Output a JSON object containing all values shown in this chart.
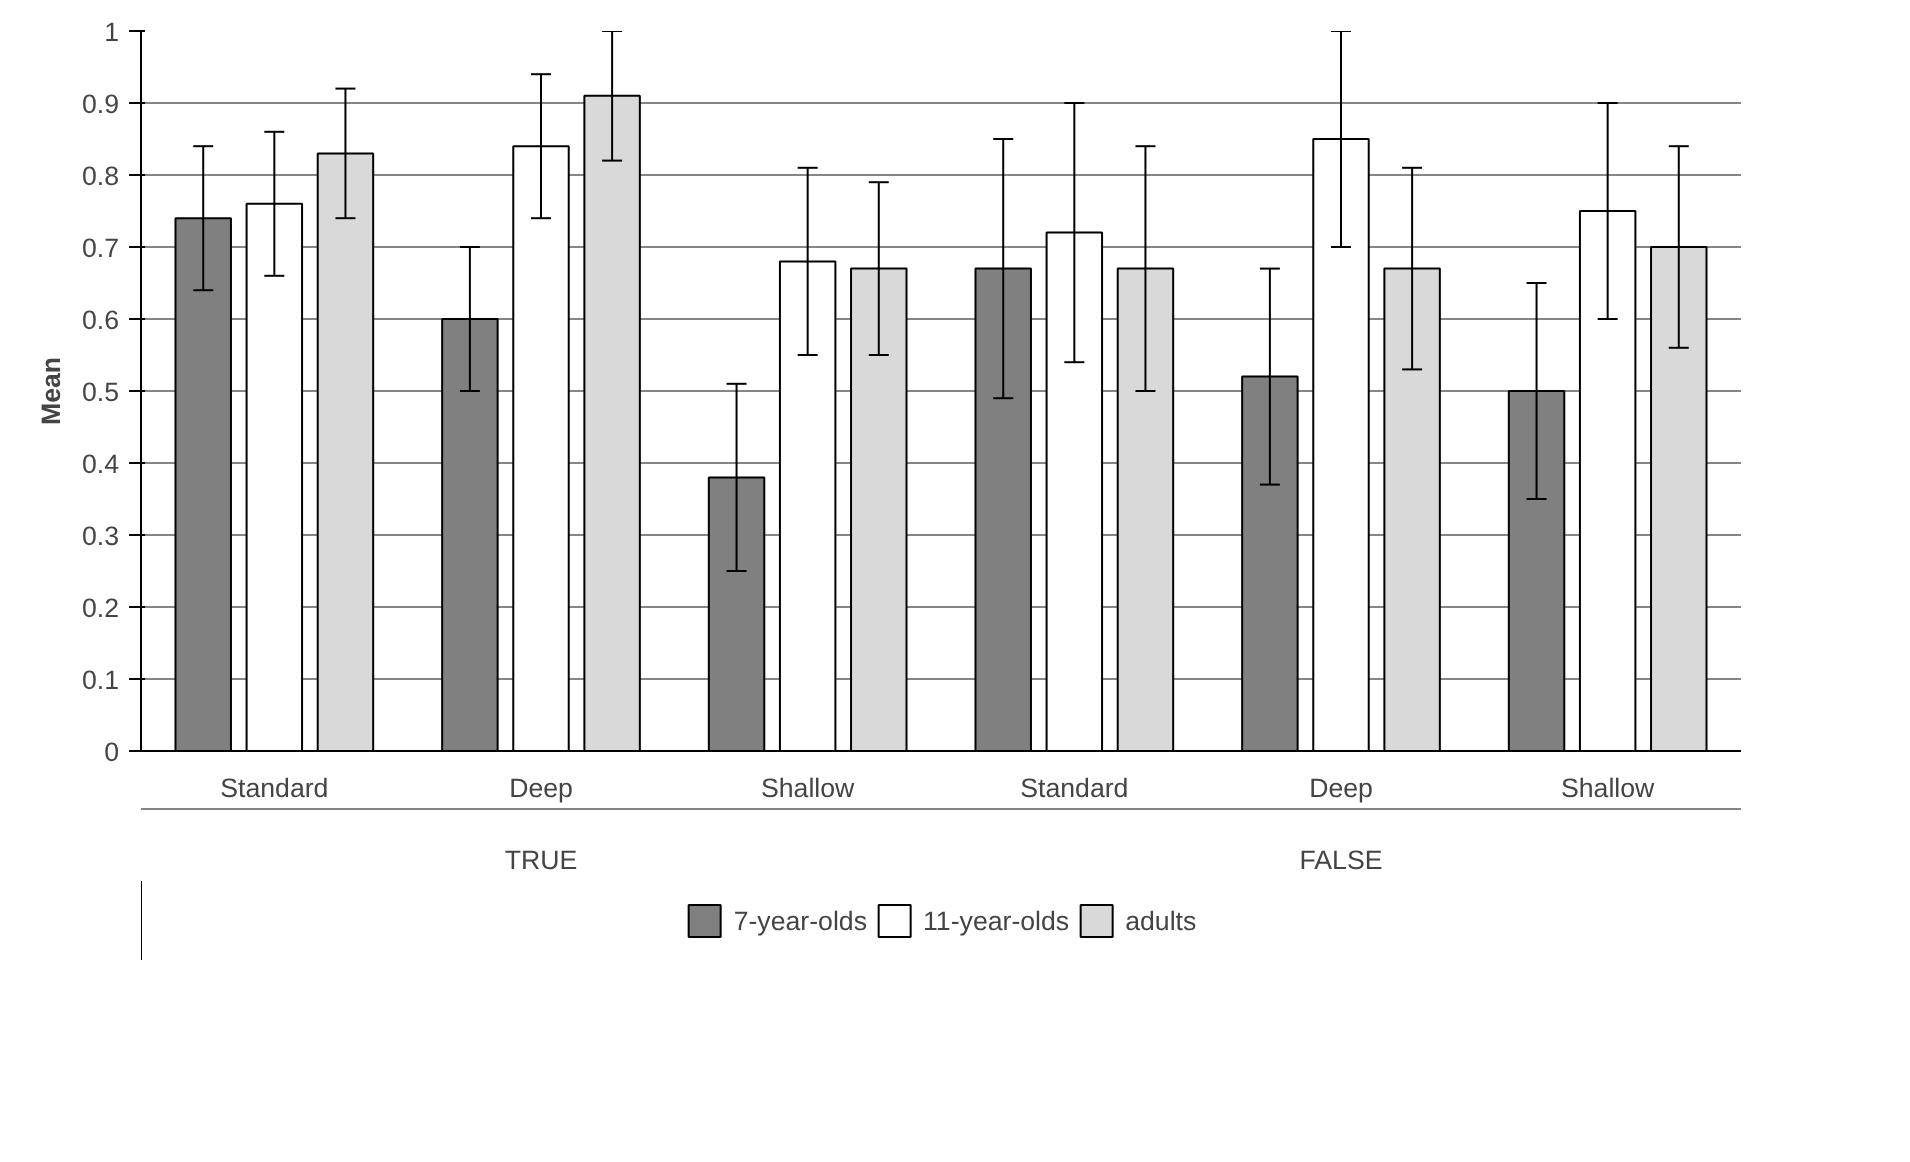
{
  "chart_data": {
    "type": "bar",
    "ylabel": "Mean",
    "categories": [
      "Standard",
      "Deep",
      "Shallow",
      "Standard",
      "Deep",
      "Shallow"
    ],
    "annotations": [
      "TRUE",
      "FALSE"
    ],
    "series": [
      {
        "name": "7-year-olds",
        "color": "#808080",
        "values": [
          0.74,
          0.6,
          0.38,
          0.67,
          0.52,
          0.5
        ],
        "errors": [
          0.1,
          0.1,
          0.13,
          0.18,
          0.15,
          0.15
        ]
      },
      {
        "name": "11-year-olds",
        "color": "#ffffff",
        "values": [
          0.76,
          0.84,
          0.68,
          0.72,
          0.85,
          0.75
        ],
        "errors": [
          0.1,
          0.1,
          0.13,
          0.18,
          0.15,
          0.15
        ]
      },
      {
        "name": "adults",
        "color": "#d9d9d9",
        "values": [
          0.83,
          0.91,
          0.67,
          0.67,
          0.67,
          0.7
        ],
        "errors": [
          0.09,
          0.09,
          0.12,
          0.17,
          0.14,
          0.14
        ]
      }
    ],
    "ylim": [
      0,
      1
    ],
    "yticks": [
      0,
      0.1,
      0.2,
      0.3,
      0.4,
      0.5,
      0.6,
      0.7,
      0.8,
      0.9,
      1
    ],
    "grid": "y",
    "legend": "bottom"
  }
}
